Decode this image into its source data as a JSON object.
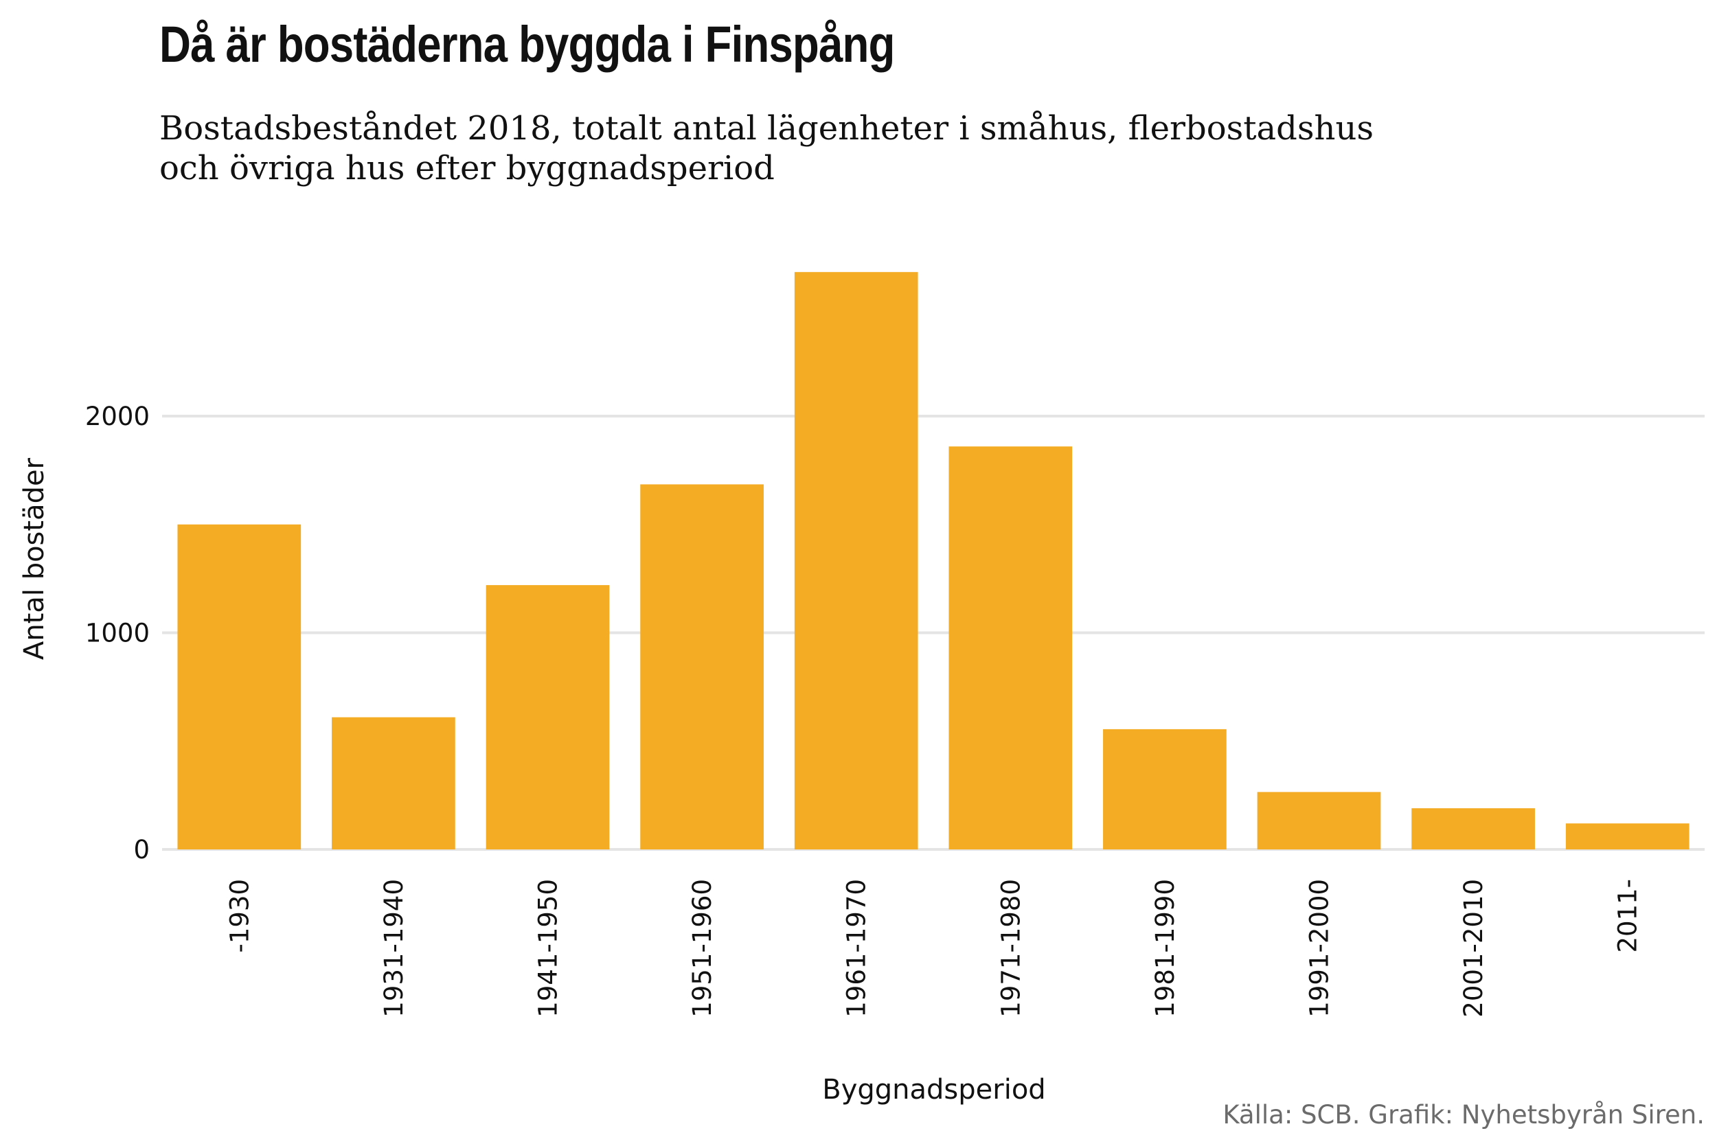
{
  "chart_data": {
    "type": "bar",
    "title": "Då är bostäderna byggda i Finspång",
    "subtitle_lines": [
      "Bostadsbeståndet 2018, totalt antal lägenheter i småhus, flerbostadshus",
      "och övriga hus efter byggnadsperiod"
    ],
    "xlabel": "Byggnadsperiod",
    "ylabel": "Antal bostäder",
    "caption": "Källa: SCB. Grafik: Nyhetsbyrån Siren.",
    "categories": [
      "-1930",
      "1931-1940",
      "1941-1950",
      "1951-1960",
      "1961-1970",
      "1971-1980",
      "1981-1990",
      "1991-2000",
      "2001-2010",
      "2011-"
    ],
    "values": [
      1500,
      610,
      1220,
      1685,
      2665,
      1860,
      555,
      265,
      190,
      120
    ],
    "ylim": [
      0,
      2700
    ],
    "yticks": [
      0,
      1000,
      2000
    ],
    "grid": "horizontal",
    "legend": "none",
    "colors": {
      "bar": "#f4ac24",
      "grid": "#e4e4e4",
      "text": "#111111",
      "caption": "#6b6b6b"
    }
  }
}
